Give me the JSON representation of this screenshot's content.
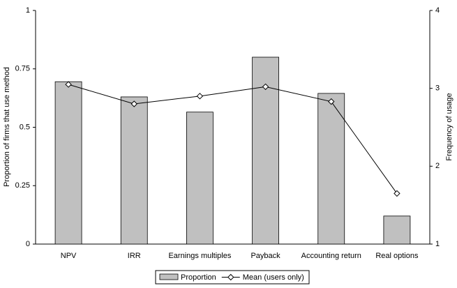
{
  "chart_data": {
    "type": "bar",
    "categories": [
      "NPV",
      "IRR",
      "Earnings multiples",
      "Payback",
      "Accounting return",
      "Real options"
    ],
    "series": [
      {
        "name": "Proportion",
        "type": "bar",
        "color": "#c0c0c0",
        "values": [
          0.695,
          0.63,
          0.565,
          0.8,
          0.645,
          0.12
        ]
      },
      {
        "name": "Mean (users only)",
        "type": "line",
        "axis": "y2",
        "color": "#000000",
        "values": [
          3.05,
          2.8,
          2.9,
          3.02,
          2.83,
          1.65
        ]
      }
    ],
    "y_label": "Proportion of firms that use method",
    "y2_label": "Frequency of usage",
    "ylim": [
      0,
      1
    ],
    "yticks": [
      0,
      0.25,
      0.5,
      0.75,
      1
    ],
    "y2lim": [
      1,
      4
    ],
    "y2ticks": [
      1,
      2,
      3,
      4
    ],
    "legend": "bottom"
  }
}
